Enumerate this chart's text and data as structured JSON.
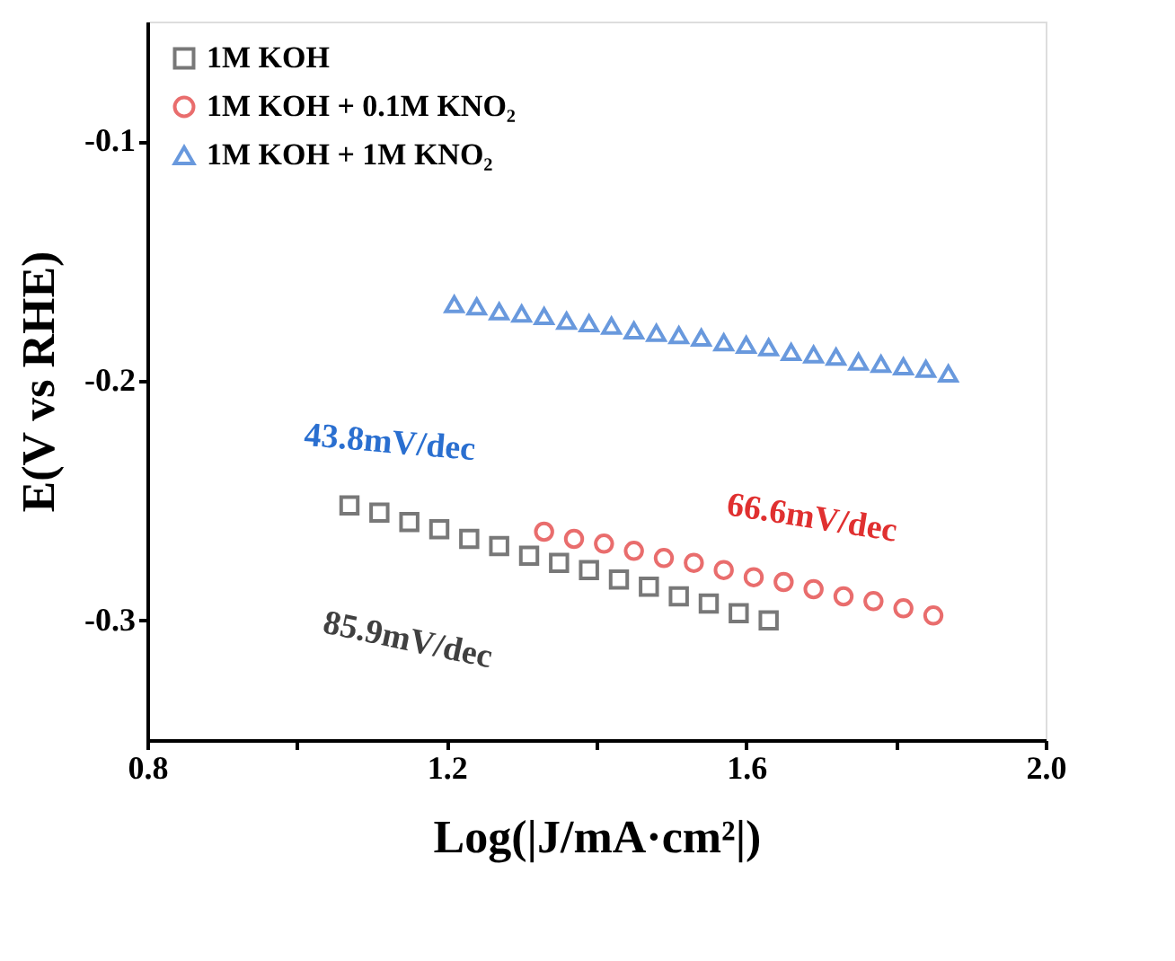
{
  "chart_data": {
    "type": "scatter",
    "xlabel": "Log(|J/mA·cm²|)",
    "ylabel": "E(V vs RHE)",
    "xlim": [
      0.8,
      2.0
    ],
    "xticks": [
      0.8,
      {
        "value": 1.0,
        "label": null
      },
      1.2,
      {
        "value": 1.4,
        "label": null
      },
      1.6,
      {
        "value": 1.8,
        "label": null
      },
      {
        "value": 2.0,
        "label": "2.0"
      }
    ],
    "ylim": [
      -0.35,
      -0.05
    ],
    "yticks": [
      {
        "value": -0.3,
        "label": "-0.3"
      },
      {
        "value": -0.2,
        "label": "-0.2"
      },
      {
        "value": -0.1,
        "label": "-0.1"
      }
    ],
    "grid": false,
    "legend": "top left",
    "series": [
      {
        "name": "1M KOH",
        "color": "#404040",
        "marker": "square",
        "x": [
          1.07,
          1.11,
          1.15,
          1.19,
          1.23,
          1.27,
          1.31,
          1.35,
          1.39,
          1.43,
          1.47,
          1.51,
          1.55,
          1.59,
          1.63
        ],
        "values": [
          -0.252,
          -0.255,
          -0.259,
          -0.262,
          -0.266,
          -0.269,
          -0.273,
          -0.276,
          -0.279,
          -0.283,
          -0.286,
          -0.29,
          -0.293,
          -0.297,
          -0.3
        ]
      },
      {
        "name": "1M KOH + 0.1M KNO₂",
        "color": "#e03030",
        "marker": "circle",
        "x": [
          1.33,
          1.37,
          1.41,
          1.45,
          1.49,
          1.53,
          1.57,
          1.61,
          1.65,
          1.69,
          1.73,
          1.77,
          1.81,
          1.85
        ],
        "values": [
          -0.263,
          -0.266,
          -0.268,
          -0.271,
          -0.274,
          -0.276,
          -0.279,
          -0.282,
          -0.284,
          -0.287,
          -0.29,
          -0.292,
          -0.295,
          -0.298
        ]
      },
      {
        "name": "1M KOH + 1M KNO₂",
        "color": "#2a6fd0",
        "marker": "triangle",
        "x": [
          1.21,
          1.24,
          1.27,
          1.3,
          1.33,
          1.36,
          1.39,
          1.42,
          1.45,
          1.48,
          1.51,
          1.54,
          1.57,
          1.6,
          1.63,
          1.66,
          1.69,
          1.72,
          1.75,
          1.78,
          1.81,
          1.84,
          1.87
        ],
        "values": [
          -0.168,
          -0.169,
          -0.171,
          -0.172,
          -0.173,
          -0.175,
          -0.176,
          -0.177,
          -0.179,
          -0.18,
          -0.181,
          -0.182,
          -0.184,
          -0.185,
          -0.186,
          -0.188,
          -0.189,
          -0.19,
          -0.192,
          -0.193,
          -0.194,
          -0.195,
          -0.197
        ]
      }
    ],
    "annotations": [
      "85.9mV/dec",
      "66.6mV/dec",
      "43.8mV/dec"
    ]
  }
}
